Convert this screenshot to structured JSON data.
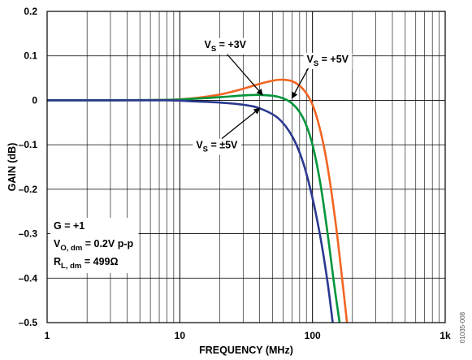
{
  "chart_data": {
    "type": "line",
    "title": "",
    "xlabel": "FREQUENCY (MHz)",
    "ylabel": "GAIN (dB)",
    "xscale": "log",
    "xlim": [
      1,
      1000
    ],
    "ylim": [
      -0.5,
      0.2
    ],
    "x_ticks": [
      {
        "value": 1,
        "label": "1"
      },
      {
        "value": 10,
        "label": "10"
      },
      {
        "value": 100,
        "label": "100"
      },
      {
        "value": 1000,
        "label": "1k"
      }
    ],
    "y_ticks": [
      {
        "value": 0.2,
        "label": "0.2"
      },
      {
        "value": 0.1,
        "label": "0.1"
      },
      {
        "value": 0,
        "label": "0"
      },
      {
        "value": -0.1,
        "label": "–0.1"
      },
      {
        "value": -0.2,
        "label": "–0.2"
      },
      {
        "value": -0.3,
        "label": "–0.3"
      },
      {
        "value": -0.4,
        "label": "–0.4"
      },
      {
        "value": -0.5,
        "label": "–0.5"
      }
    ],
    "grid": true,
    "series": [
      {
        "name": "VS = ±5V",
        "color": "#2b3990",
        "x": [
          1,
          3,
          8,
          12,
          20,
          30,
          40,
          55,
          70,
          85,
          100,
          115,
          130,
          142
        ],
        "y": [
          0,
          0,
          0,
          -0.002,
          -0.005,
          -0.01,
          -0.018,
          -0.04,
          -0.08,
          -0.14,
          -0.22,
          -0.31,
          -0.41,
          -0.5
        ]
      },
      {
        "name": "VS = +3V",
        "color": "#00953a",
        "x": [
          1,
          3,
          8,
          12,
          20,
          30,
          40,
          55,
          70,
          85,
          100,
          115,
          130,
          145,
          160
        ],
        "y": [
          0,
          0,
          0.001,
          0.003,
          0.007,
          0.011,
          0.012,
          0.008,
          -0.007,
          -0.04,
          -0.1,
          -0.19,
          -0.3,
          -0.41,
          -0.5
        ]
      },
      {
        "name": "VS = +5V",
        "color": "#f26522",
        "x": [
          1,
          3,
          8,
          12,
          20,
          30,
          40,
          55,
          70,
          85,
          100,
          115,
          130,
          150,
          170,
          182
        ],
        "y": [
          0,
          0,
          0.001,
          0.004,
          0.013,
          0.026,
          0.037,
          0.046,
          0.043,
          0.025,
          -0.01,
          -0.07,
          -0.15,
          -0.28,
          -0.42,
          -0.5
        ]
      }
    ],
    "series_labels": [
      {
        "series": "VS = +3V",
        "sub": "S",
        "rest": " = +3V",
        "ann_x": 22,
        "ann_y": 0.118,
        "arrow_to": [
          42,
          0.012
        ]
      },
      {
        "series": "VS = +5V",
        "sub": "S",
        "rest": " = +5V",
        "ann_x": 130,
        "ann_y": 0.085,
        "arrow_to": [
          70,
          0.005
        ]
      },
      {
        "series": "VS = ±5V",
        "sub": "S",
        "rest": " = ±5V",
        "ann_x": 19,
        "ann_y": -0.108,
        "arrow_to": [
          40,
          -0.018
        ]
      }
    ],
    "annotation_box": {
      "lines": [
        {
          "main": "G = +1",
          "sub": "",
          "rest": ""
        },
        {
          "main": "V",
          "sub": "O, dm",
          "rest": " = 0.2V p-p"
        },
        {
          "main": "R",
          "sub": "L, dm",
          "rest": " = 499Ω"
        }
      ]
    },
    "figure_id": "01035-008"
  }
}
